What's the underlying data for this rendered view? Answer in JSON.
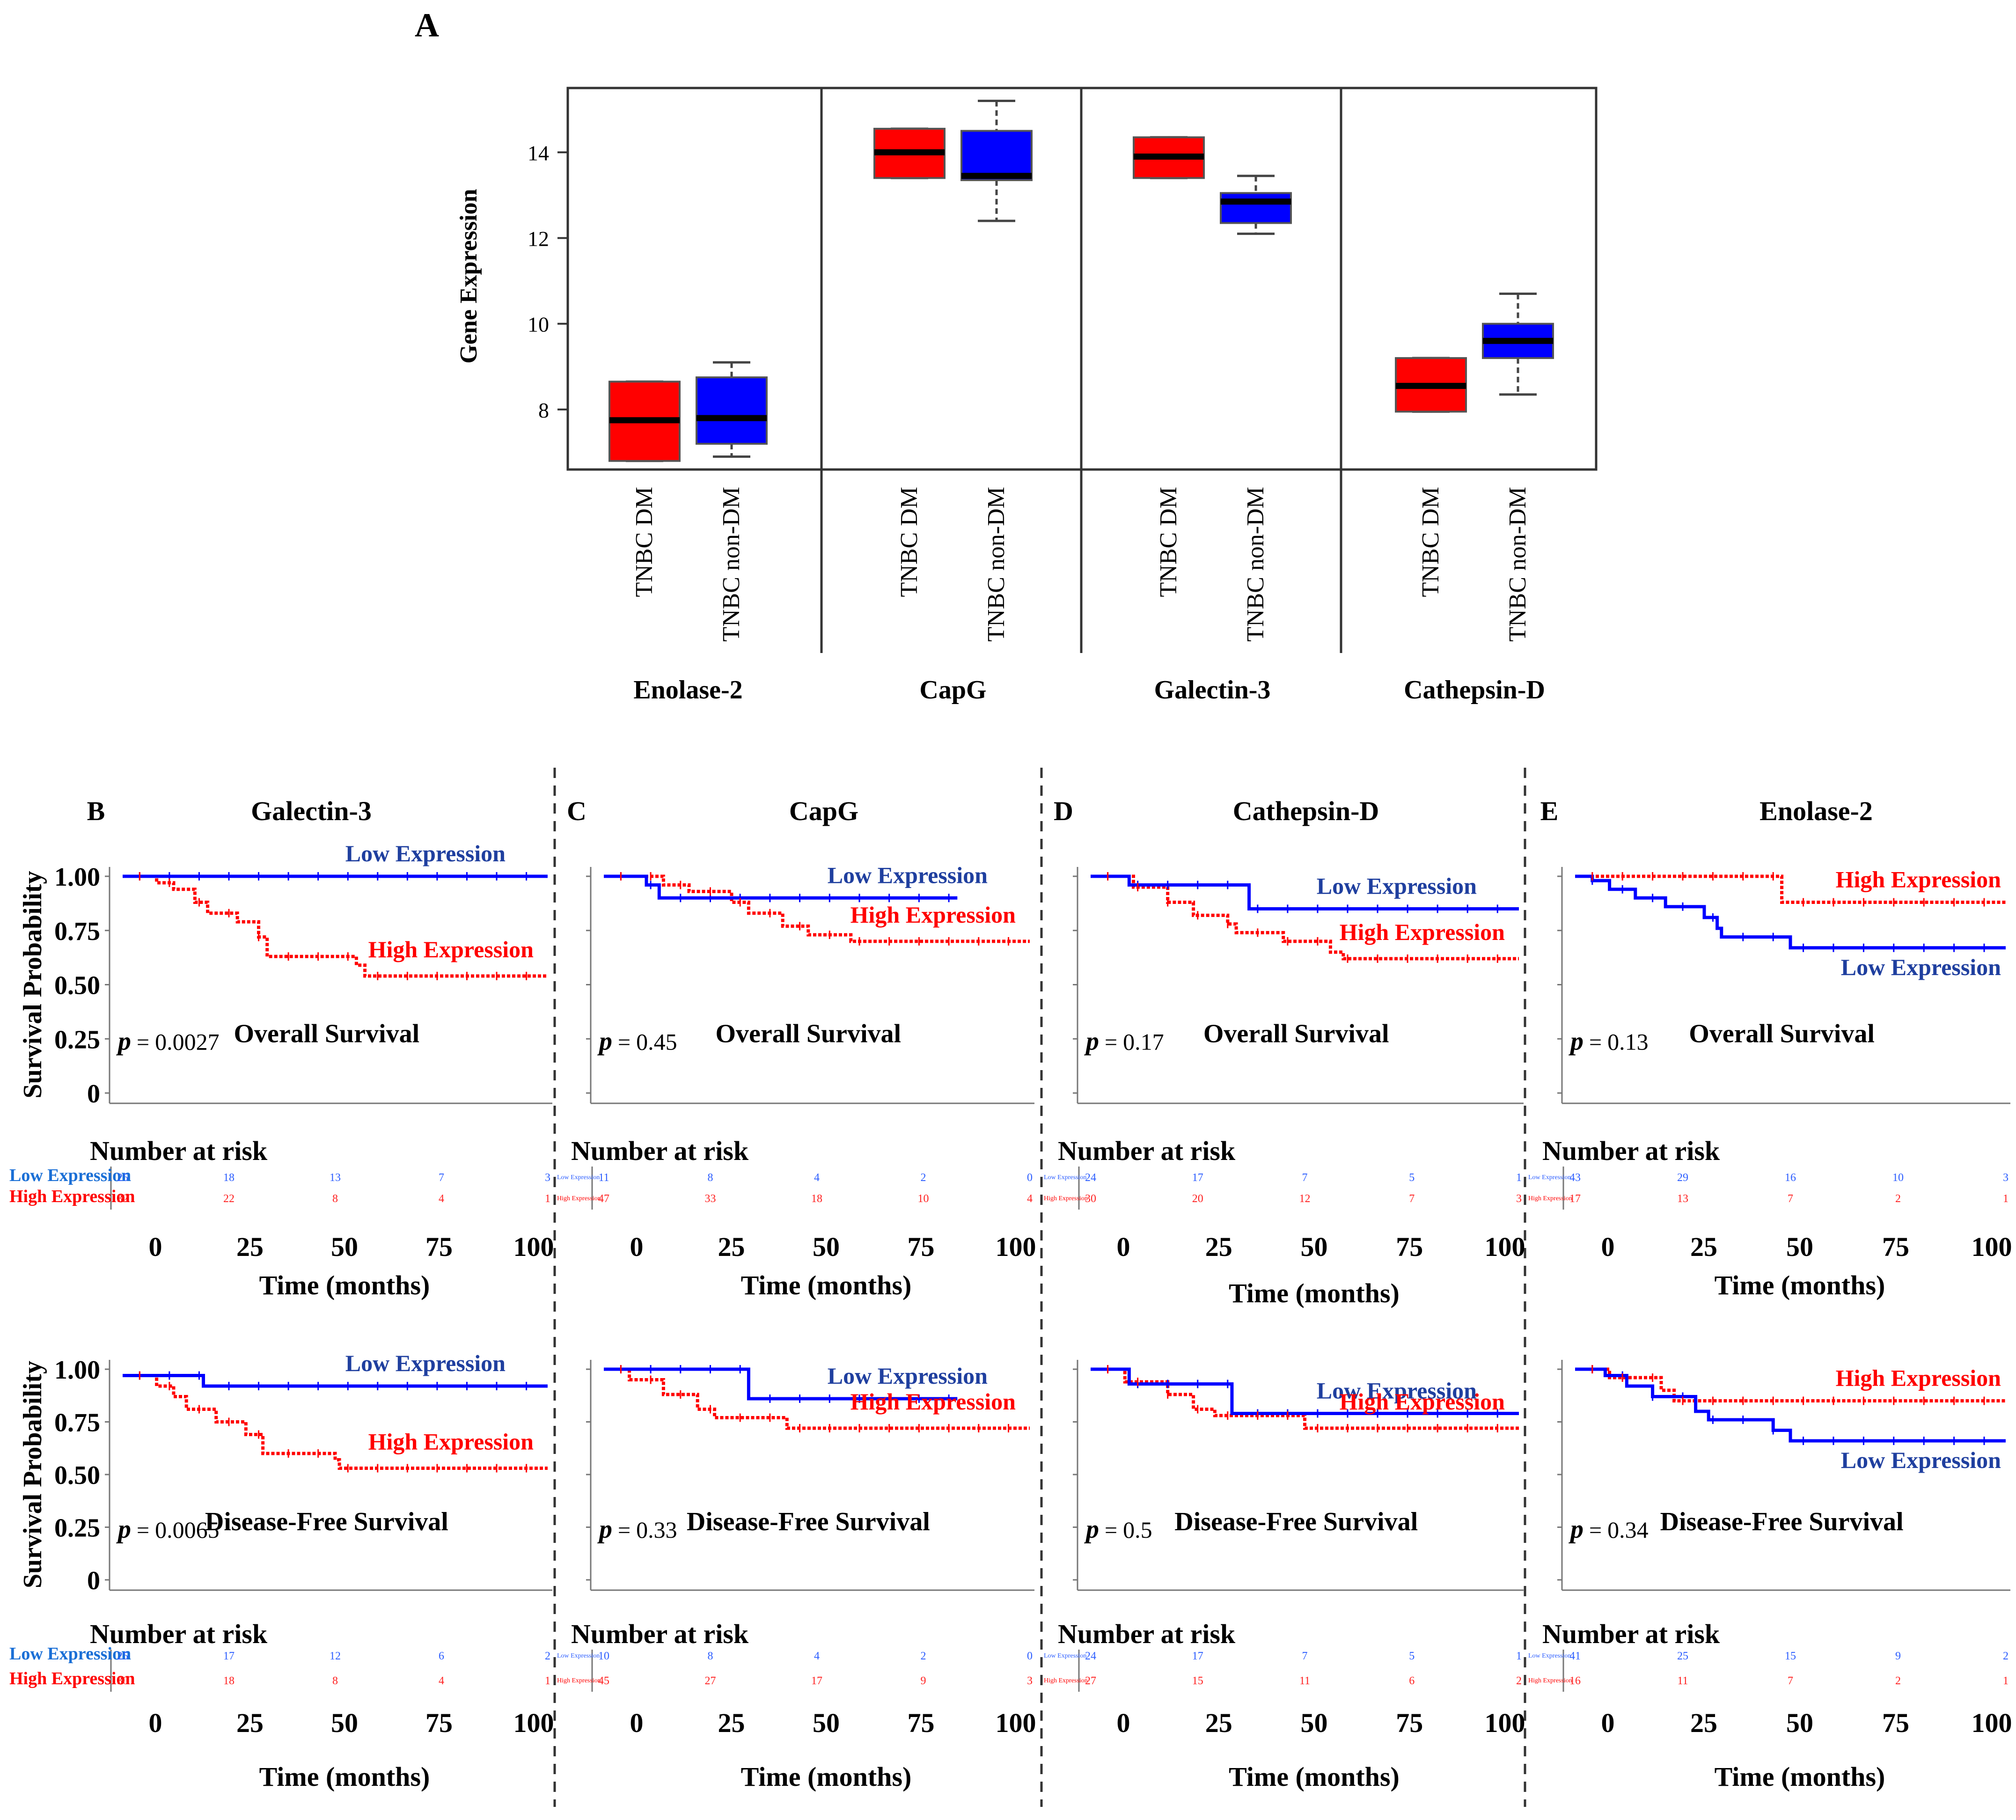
{
  "colors": {
    "dm": "#ff0000",
    "non_dm": "#0000ff",
    "high": "#ff0000",
    "low": "#0000ff"
  },
  "chart_data": [
    {
      "type": "box",
      "panel": "A",
      "ylabel": "Gene Expression",
      "yticks": [
        8,
        10,
        12,
        14
      ],
      "ylim": [
        6.6,
        15.5
      ],
      "groups": [
        {
          "name": "Enolase-2",
          "boxes": [
            {
              "label": "TNBC DM",
              "q1": 6.8,
              "median": 7.75,
              "q3": 8.65,
              "whisker_low": 6.8,
              "whisker_high": 8.65
            },
            {
              "label": "TNBC non-DM",
              "q1": 7.2,
              "median": 7.8,
              "q3": 8.75,
              "whisker_low": 6.9,
              "whisker_high": 9.1
            }
          ]
        },
        {
          "name": "CapG",
          "boxes": [
            {
              "label": "TNBC DM",
              "q1": 13.4,
              "median": 14.0,
              "q3": 14.55,
              "whisker_low": 13.4,
              "whisker_high": 14.55
            },
            {
              "label": "TNBC non-DM",
              "q1": 13.35,
              "median": 13.45,
              "q3": 14.5,
              "whisker_low": 12.4,
              "whisker_high": 15.2
            }
          ]
        },
        {
          "name": "Galectin-3",
          "boxes": [
            {
              "label": "TNBC DM",
              "q1": 13.4,
              "median": 13.9,
              "q3": 14.35,
              "whisker_low": 13.4,
              "whisker_high": 14.35
            },
            {
              "label": "TNBC non-DM",
              "q1": 12.35,
              "median": 12.85,
              "q3": 13.05,
              "whisker_low": 12.1,
              "whisker_high": 13.45
            }
          ]
        },
        {
          "name": "Cathepsin-D",
          "boxes": [
            {
              "label": "TNBC DM",
              "q1": 7.95,
              "median": 8.55,
              "q3": 9.2,
              "whisker_low": 7.95,
              "whisker_high": 9.2
            },
            {
              "label": "TNBC non-DM",
              "q1": 9.2,
              "median": 9.6,
              "q3": 10.0,
              "whisker_low": 8.35,
              "whisker_high": 10.7
            }
          ]
        }
      ]
    },
    {
      "type": "line",
      "subtype": "kaplan-meier",
      "panel_letters": [
        "B",
        "C",
        "D",
        "E"
      ],
      "titles": [
        "Galectin-3",
        "CapG",
        "Cathepsin-D",
        "Enolase-2"
      ],
      "ylabel": "Survival Probability",
      "yticks": [
        "1.00",
        "0.75",
        "0.50",
        "0.25",
        "0"
      ],
      "xticks": [
        "0",
        "25",
        "50",
        "75",
        "100"
      ],
      "xlabel": "Time (months)",
      "risk_title": "Number at risk",
      "risk_row_labels": [
        "Low Expression",
        "High Expression"
      ],
      "legend_low": "Low Expression",
      "legend_high": "High Expression",
      "plots": [
        {
          "row": "os",
          "col": 0,
          "endpoint": "Overall Survival",
          "p": "0.0027",
          "low_label_above": true,
          "low": [
            [
              0,
              1.0
            ],
            [
              100,
              1.0
            ]
          ],
          "high": [
            [
              0,
              1.0
            ],
            [
              8,
              0.97
            ],
            [
              12,
              0.94
            ],
            [
              17,
              0.88
            ],
            [
              20,
              0.83
            ],
            [
              27,
              0.79
            ],
            [
              32,
              0.72
            ],
            [
              34,
              0.63
            ],
            [
              55,
              0.59
            ],
            [
              57,
              0.54
            ],
            [
              100,
              0.54
            ]
          ],
          "risk_low": [
            "25",
            "18",
            "13",
            "7",
            "3"
          ],
          "risk_high": [
            "32",
            "22",
            "8",
            "4",
            "1"
          ]
        },
        {
          "row": "os",
          "col": 1,
          "endpoint": "Overall Survival",
          "p": "0.45",
          "low_label_above": true,
          "low": [
            [
              0,
              1.0
            ],
            [
              10,
              0.96
            ],
            [
              13,
              0.9
            ],
            [
              83,
              0.9
            ]
          ],
          "high": [
            [
              0,
              1.0
            ],
            [
              14,
              0.96
            ],
            [
              20,
              0.93
            ],
            [
              30,
              0.88
            ],
            [
              34,
              0.83
            ],
            [
              42,
              0.77
            ],
            [
              48,
              0.73
            ],
            [
              58,
              0.7
            ],
            [
              100,
              0.7
            ]
          ],
          "risk_low": [
            "11",
            "8",
            "4",
            "2",
            "0"
          ],
          "risk_high": [
            "47",
            "33",
            "18",
            "10",
            "4"
          ]
        },
        {
          "row": "os",
          "col": 2,
          "endpoint": "Overall Survival",
          "p": "0.17",
          "low_label_above": true,
          "low": [
            [
              0,
              1.0
            ],
            [
              9,
              0.96
            ],
            [
              35,
              0.96
            ],
            [
              37,
              0.85
            ],
            [
              100,
              0.85
            ]
          ],
          "high": [
            [
              0,
              1.0
            ],
            [
              10,
              0.95
            ],
            [
              18,
              0.88
            ],
            [
              24,
              0.82
            ],
            [
              32,
              0.78
            ],
            [
              34,
              0.74
            ],
            [
              45,
              0.7
            ],
            [
              56,
              0.65
            ],
            [
              59,
              0.62
            ],
            [
              100,
              0.62
            ]
          ],
          "risk_low": [
            "24",
            "17",
            "7",
            "5",
            "1"
          ],
          "risk_high": [
            "30",
            "20",
            "12",
            "7",
            "3"
          ]
        },
        {
          "row": "os",
          "col": 3,
          "endpoint": "Overall Survival",
          "p": "0.13",
          "low_label_above": false,
          "low": [
            [
              0,
              1.0
            ],
            [
              4,
              0.98
            ],
            [
              8,
              0.94
            ],
            [
              14,
              0.9
            ],
            [
              21,
              0.86
            ],
            [
              30,
              0.81
            ],
            [
              33,
              0.76
            ],
            [
              34,
              0.72
            ],
            [
              50,
              0.67
            ],
            [
              100,
              0.67
            ]
          ],
          "high": [
            [
              0,
              1.0
            ],
            [
              46,
              1.0
            ],
            [
              48,
              0.88
            ],
            [
              100,
              0.88
            ]
          ],
          "risk_low": [
            "43",
            "29",
            "16",
            "10",
            "3"
          ],
          "risk_high": [
            "17",
            "13",
            "7",
            "2",
            "1"
          ]
        },
        {
          "row": "dfs",
          "col": 0,
          "endpoint": "Disease-Free Survival",
          "p": "0.0065",
          "low_label_above": true,
          "low": [
            [
              0,
              0.97
            ],
            [
              18,
              0.97
            ],
            [
              19,
              0.92
            ],
            [
              100,
              0.92
            ]
          ],
          "high": [
            [
              0,
              0.97
            ],
            [
              8,
              0.92
            ],
            [
              12,
              0.87
            ],
            [
              15,
              0.81
            ],
            [
              22,
              0.75
            ],
            [
              29,
              0.69
            ],
            [
              33,
              0.6
            ],
            [
              50,
              0.57
            ],
            [
              51,
              0.53
            ],
            [
              100,
              0.53
            ]
          ],
          "risk_low": [
            "25",
            "17",
            "12",
            "6",
            "2"
          ],
          "risk_high": [
            "30",
            "18",
            "8",
            "4",
            "1"
          ]
        },
        {
          "row": "dfs",
          "col": 1,
          "endpoint": "Disease-Free Survival",
          "p": "0.33",
          "low_label_above": true,
          "low": [
            [
              0,
              1.0
            ],
            [
              33,
              1.0
            ],
            [
              34,
              0.86
            ],
            [
              83,
              0.86
            ]
          ],
          "high": [
            [
              0,
              1.0
            ],
            [
              6,
              0.95
            ],
            [
              14,
              0.88
            ],
            [
              22,
              0.81
            ],
            [
              26,
              0.77
            ],
            [
              43,
              0.72
            ],
            [
              100,
              0.72
            ]
          ],
          "risk_low": [
            "10",
            "8",
            "4",
            "2",
            "0"
          ],
          "risk_high": [
            "45",
            "27",
            "17",
            "9",
            "3"
          ]
        },
        {
          "row": "dfs",
          "col": 2,
          "endpoint": "Disease-Free Survival",
          "p": "0.5",
          "low_label_above": true,
          "low": [
            [
              0,
              1.0
            ],
            [
              9,
              0.93
            ],
            [
              31,
              0.93
            ],
            [
              33,
              0.79
            ],
            [
              100,
              0.79
            ]
          ],
          "high": [
            [
              0,
              1.0
            ],
            [
              8,
              0.94
            ],
            [
              18,
              0.88
            ],
            [
              24,
              0.81
            ],
            [
              29,
              0.78
            ],
            [
              50,
              0.72
            ],
            [
              100,
              0.72
            ]
          ],
          "risk_low": [
            "24",
            "17",
            "7",
            "5",
            "1"
          ],
          "risk_high": [
            "27",
            "15",
            "11",
            "6",
            "2"
          ]
        },
        {
          "row": "dfs",
          "col": 3,
          "endpoint": "Disease-Free Survival",
          "p": "0.34",
          "low_label_above": false,
          "low": [
            [
              0,
              1.0
            ],
            [
              7,
              0.97
            ],
            [
              12,
              0.92
            ],
            [
              18,
              0.87
            ],
            [
              28,
              0.8
            ],
            [
              31,
              0.76
            ],
            [
              46,
              0.71
            ],
            [
              50,
              0.66
            ],
            [
              100,
              0.66
            ]
          ],
          "high": [
            [
              0,
              1.0
            ],
            [
              8,
              0.96
            ],
            [
              20,
              0.9
            ],
            [
              23,
              0.85
            ],
            [
              100,
              0.85
            ]
          ],
          "risk_low": [
            "41",
            "25",
            "15",
            "9",
            "2"
          ],
          "risk_high": [
            "16",
            "11",
            "7",
            "2",
            "1"
          ]
        }
      ]
    }
  ]
}
